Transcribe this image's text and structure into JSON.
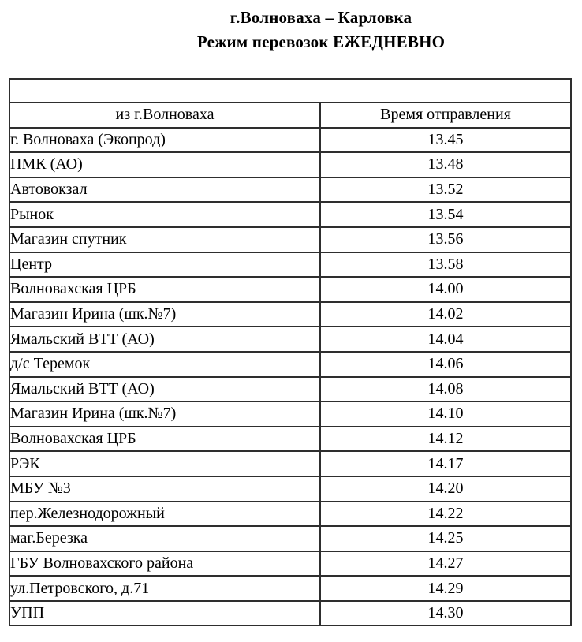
{
  "header": {
    "route_title": "г.Волноваха – Карловка",
    "schedule_mode": "Режим перевозок ЕЖЕДНЕВНО"
  },
  "table": {
    "columns": [
      "из г.Волноваха",
      "Время отправления"
    ],
    "rows": [
      {
        "stop": "г. Волноваха (Экопрод)",
        "time": "13.45"
      },
      {
        "stop": "ПМК (АО)",
        "time": "13.48"
      },
      {
        "stop": "Автовокзал",
        "time": "13.52"
      },
      {
        "stop": "Рынок",
        "time": "13.54"
      },
      {
        "stop": "Магазин спутник",
        "time": "13.56"
      },
      {
        "stop": "Центр",
        "time": "13.58"
      },
      {
        "stop": "Волновахская ЦРБ",
        "time": "14.00"
      },
      {
        "stop": "Магазин Ирина (шк.№7)",
        "time": "14.02"
      },
      {
        "stop": "Ямальский ВТТ (АО)",
        "time": "14.04"
      },
      {
        "stop": "д/с Теремок",
        "time": "14.06"
      },
      {
        "stop": "Ямальский ВТТ (АО)",
        "time": "14.08"
      },
      {
        "stop": "Магазин Ирина (шк.№7)",
        "time": "14.10"
      },
      {
        "stop": "Волновахская ЦРБ",
        "time": "14.12"
      },
      {
        "stop": "РЭК",
        "time": "14.17"
      },
      {
        "stop": "МБУ №3",
        "time": "14.20"
      },
      {
        "stop": "пер.Железнодорожный",
        "time": "14.22"
      },
      {
        "stop": "маг.Березка",
        "time": "14.25"
      },
      {
        "stop": "ГБУ Волновахского района",
        "time": "14.27"
      },
      {
        "stop": "ул.Петровского, д.71",
        "time": "14.29"
      },
      {
        "stop": "УПП",
        "time": "14.30"
      }
    ]
  }
}
